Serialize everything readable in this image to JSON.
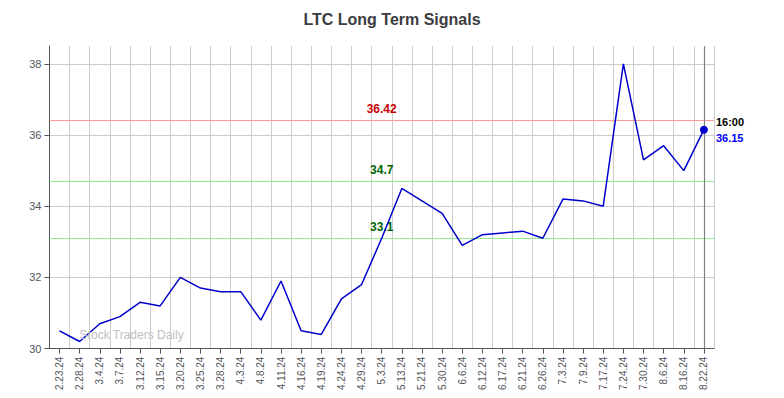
{
  "chart_data": {
    "type": "line",
    "title": "LTC Long Term Signals",
    "categories": [
      "2.23.24",
      "2.28.24",
      "3.4.24",
      "3.7.24",
      "3.12.24",
      "3.15.24",
      "3.20.24",
      "3.25.24",
      "3.28.24",
      "4.3.24",
      "4.8.24",
      "4.11.24",
      "4.16.24",
      "4.19.24",
      "4.24.24",
      "4.29.24",
      "5.3.24",
      "5.13.24",
      "5.21.24",
      "5.30.24",
      "6.6.24",
      "6.12.24",
      "6.17.24",
      "6.21.24",
      "6.26.24",
      "7.3.24",
      "7.9.24",
      "7.17.24",
      "7.24.24",
      "7.30.24",
      "8.6.24",
      "8.16.24",
      "8.22.24"
    ],
    "values": [
      30.5,
      30.2,
      30.7,
      30.9,
      31.3,
      31.2,
      32.0,
      31.7,
      31.6,
      31.6,
      30.8,
      31.9,
      30.5,
      30.4,
      31.4,
      31.8,
      33.1,
      34.5,
      34.15,
      33.8,
      32.9,
      33.2,
      33.25,
      33.3,
      33.1,
      34.2,
      34.15,
      34.0,
      38.0,
      35.3,
      35.7,
      35.0,
      36.15
    ],
    "color": "#0000cc",
    "reference_lines": [
      {
        "value": 36.42,
        "color": "#ff9999",
        "label_color": "#cc0000"
      },
      {
        "value": 34.7,
        "color": "#90ee90",
        "label_color": "#006400"
      },
      {
        "value": 33.1,
        "color": "#90ee90",
        "label_color": "#006400"
      }
    ],
    "end_marker": {
      "value": 36.15,
      "label": "16:00",
      "label_color": "#000000",
      "value_color": "#0000ff",
      "line_color": "#808080"
    },
    "watermark": {
      "text": "Stock Traders Daily",
      "color": "#c0c0c0"
    },
    "ylim": [
      30,
      38.5
    ],
    "yticks": [
      30,
      32,
      34,
      36,
      38
    ],
    "grid": true,
    "background": "#ffffff",
    "grid_color": "#cccccc"
  }
}
